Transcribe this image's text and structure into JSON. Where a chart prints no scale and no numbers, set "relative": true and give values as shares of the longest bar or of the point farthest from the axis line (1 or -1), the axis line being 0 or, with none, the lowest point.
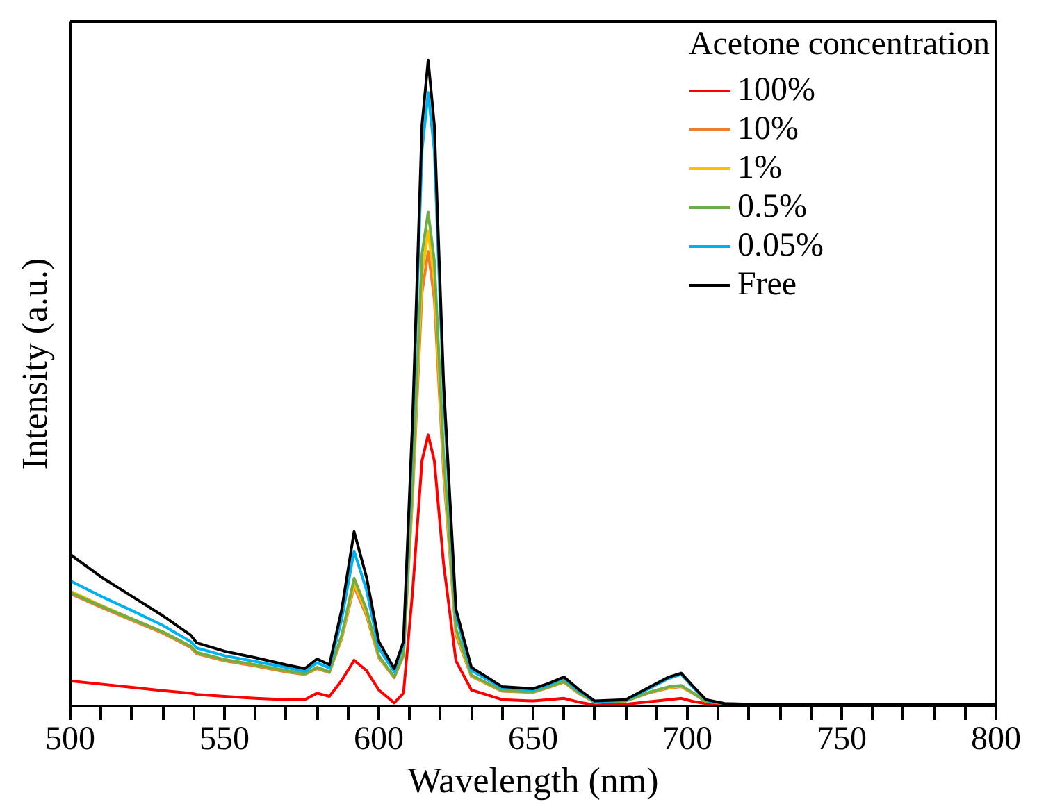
{
  "chart_data": {
    "type": "line",
    "relative": true,
    "xlabel": "Wavelength (nm)",
    "ylabel": "Intensity (a.u.)",
    "legend_title": "Acetone concentration",
    "legend": "top right",
    "grid": false,
    "marker": "none",
    "line_style": "solid",
    "xlim": [
      500,
      800
    ],
    "xticks": [
      500,
      {
        "value": 510,
        "label": null
      },
      {
        "value": 520,
        "label": null
      },
      {
        "value": 530,
        "label": null
      },
      {
        "value": 540,
        "label": null
      },
      550,
      {
        "value": 560,
        "label": null
      },
      {
        "value": 570,
        "label": null
      },
      {
        "value": 580,
        "label": null
      },
      {
        "value": 590,
        "label": null
      },
      600,
      {
        "value": 610,
        "label": null
      },
      {
        "value": 620,
        "label": null
      },
      {
        "value": 630,
        "label": null
      },
      {
        "value": 640,
        "label": null
      },
      650,
      {
        "value": 660,
        "label": null
      },
      {
        "value": 670,
        "label": null
      },
      {
        "value": 680,
        "label": null
      },
      {
        "value": 690,
        "label": null
      },
      700,
      {
        "value": 710,
        "label": null
      },
      {
        "value": 720,
        "label": null
      },
      {
        "value": 730,
        "label": null
      },
      {
        "value": 740,
        "label": null
      },
      750,
      {
        "value": 760,
        "label": null
      },
      {
        "value": 770,
        "label": null
      },
      {
        "value": 780,
        "label": null
      },
      {
        "value": 790,
        "label": null
      },
      800
    ],
    "x": [
      500,
      510,
      520,
      530,
      539,
      541,
      550,
      560,
      570,
      576,
      580,
      584,
      588,
      592,
      596,
      600,
      605,
      608,
      611,
      614,
      616,
      618,
      621,
      625,
      630,
      640,
      650,
      655,
      660,
      665,
      670,
      680,
      688,
      694,
      698,
      702,
      706,
      712,
      720,
      750,
      800
    ],
    "series": [
      {
        "name": "100%",
        "color": "#ff0000",
        "values": [
          0.039,
          0.034,
          0.029,
          0.024,
          0.02,
          0.018,
          0.015,
          0.012,
          0.01,
          0.01,
          0.02,
          0.015,
          0.04,
          0.071,
          0.055,
          0.025,
          0.005,
          0.02,
          0.18,
          0.38,
          0.42,
          0.38,
          0.22,
          0.07,
          0.025,
          0.01,
          0.008,
          0.01,
          0.012,
          0.006,
          0.002,
          0.003,
          0.007,
          0.01,
          0.012,
          0.007,
          0.004,
          0.003,
          null,
          null,
          null
        ]
      },
      {
        "name": "10%",
        "color": "#ed7d31",
        "values": [
          0.174,
          0.153,
          0.133,
          0.113,
          0.091,
          0.081,
          0.07,
          0.062,
          0.053,
          0.049,
          0.058,
          0.052,
          0.105,
          0.185,
          0.14,
          0.075,
          0.044,
          0.078,
          0.33,
          0.64,
          0.704,
          0.63,
          0.36,
          0.11,
          0.046,
          0.023,
          0.021,
          0.029,
          0.037,
          0.019,
          0.006,
          0.008,
          0.021,
          0.028,
          0.03,
          0.019,
          0.007,
          0.004,
          null,
          null,
          null
        ]
      },
      {
        "name": "1%",
        "color": "#ffc000",
        "values": [
          0.178,
          0.156,
          0.135,
          0.115,
          0.093,
          0.083,
          0.072,
          0.064,
          0.055,
          0.05,
          0.06,
          0.053,
          0.108,
          0.19,
          0.145,
          0.077,
          0.045,
          0.079,
          0.34,
          0.67,
          0.736,
          0.66,
          0.375,
          0.115,
          0.047,
          0.024,
          0.022,
          0.03,
          0.038,
          0.02,
          0.006,
          0.008,
          0.022,
          0.029,
          0.031,
          0.02,
          0.007,
          null,
          null,
          null,
          null
        ]
      },
      {
        "name": "0.5%",
        "color": "#70ad47",
        "values": [
          0.176,
          0.155,
          0.135,
          0.115,
          0.093,
          0.083,
          0.072,
          0.064,
          0.055,
          0.05,
          0.06,
          0.053,
          0.11,
          0.198,
          0.15,
          0.078,
          0.045,
          0.08,
          0.35,
          0.7,
          0.765,
          0.69,
          0.39,
          0.12,
          0.048,
          0.024,
          0.022,
          0.03,
          0.038,
          0.02,
          0.006,
          0.008,
          0.022,
          0.03,
          0.032,
          0.02,
          0.007,
          0.004,
          null,
          null,
          null
        ]
      },
      {
        "name": "0.05%",
        "color": "#00b0f0",
        "values": [
          0.194,
          0.17,
          0.148,
          0.125,
          0.1,
          0.09,
          0.078,
          0.069,
          0.06,
          0.054,
          0.067,
          0.059,
          0.135,
          0.24,
          0.18,
          0.09,
          0.053,
          0.095,
          0.43,
          0.86,
          0.95,
          0.86,
          0.48,
          0.14,
          0.055,
          0.028,
          0.025,
          0.033,
          0.043,
          0.023,
          0.007,
          0.009,
          0.028,
          0.043,
          0.049,
          0.028,
          0.009,
          0.004,
          null,
          null,
          null
        ]
      },
      {
        "name": "Free",
        "color": "#000000",
        "values": [
          0.235,
          0.2,
          0.17,
          0.14,
          0.11,
          0.098,
          0.085,
          0.075,
          0.064,
          0.058,
          0.073,
          0.064,
          0.15,
          0.27,
          0.2,
          0.1,
          0.058,
          0.1,
          0.45,
          0.9,
          1.0,
          0.9,
          0.5,
          0.15,
          0.06,
          0.03,
          0.027,
          0.035,
          0.045,
          0.025,
          0.008,
          0.01,
          0.03,
          0.045,
          0.051,
          0.03,
          0.01,
          0.004,
          0.003,
          0.003,
          0.003
        ]
      }
    ]
  }
}
